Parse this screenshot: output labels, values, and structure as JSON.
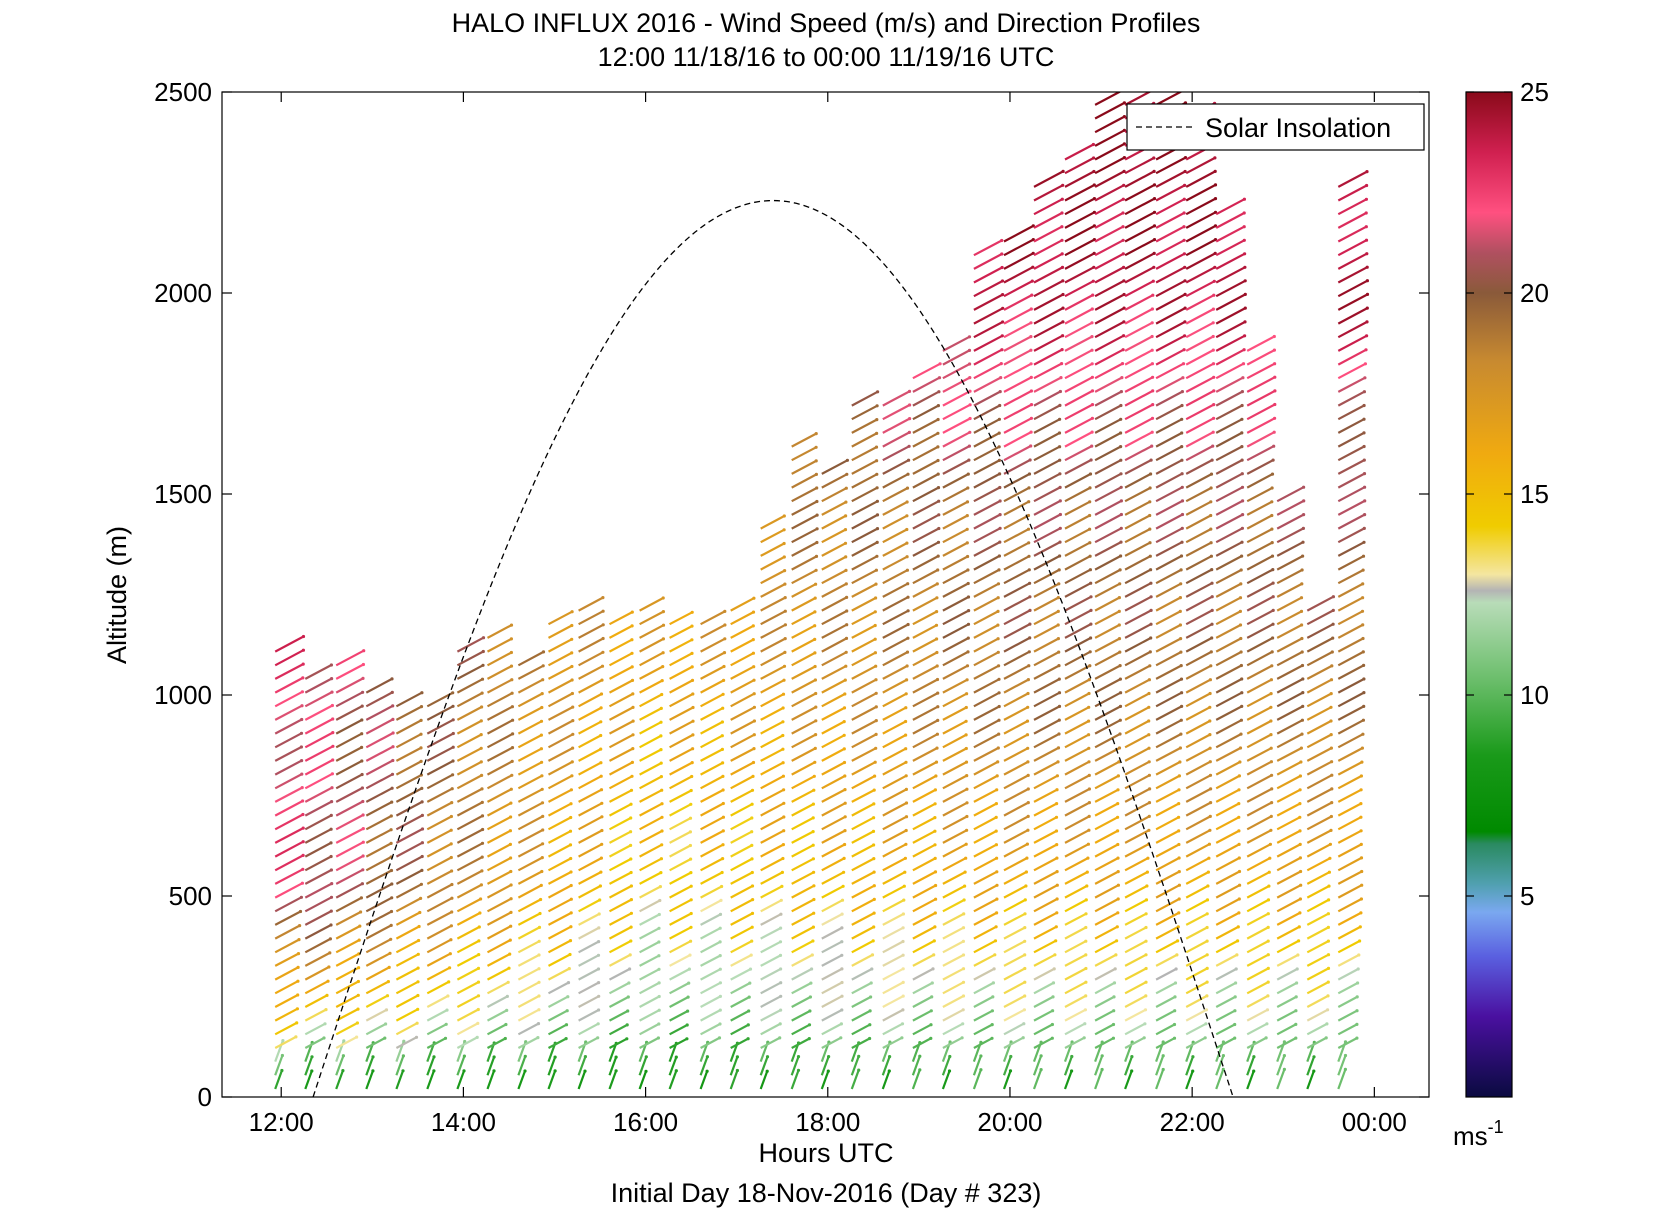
{
  "chart_data": {
    "type": "quiver",
    "title": "HALO INFLUX 2016 - Wind Speed (m/s) and Direction Profiles",
    "subtitle": "12:00 11/18/16 to 00:00 11/19/16  UTC",
    "xlabel": "Hours UTC",
    "ylabel": "Altitude (m)",
    "footer": "Initial Day 18-Nov-2016 (Day # 323)",
    "xlim_hours": [
      11.35,
      24.6
    ],
    "ylim": [
      0,
      2500
    ],
    "x_ticks": [
      {
        "value": 12,
        "label": "12:00"
      },
      {
        "value": 14,
        "label": "14:00"
      },
      {
        "value": 16,
        "label": "16:00"
      },
      {
        "value": 18,
        "label": "18:00"
      },
      {
        "value": 20,
        "label": "20:00"
      },
      {
        "value": 22,
        "label": "22:00"
      },
      {
        "value": 24,
        "label": "00:00"
      }
    ],
    "y_ticks": [
      0,
      500,
      1000,
      1500,
      2000,
      2500
    ],
    "legend": {
      "label": "Solar Insolation",
      "line_style": "dashed",
      "color": "#000000",
      "placement": "top-right"
    },
    "colorbar": {
      "min": 0,
      "max": 25,
      "ticks": [
        5,
        10,
        15,
        20,
        25
      ],
      "unit_label": "ms",
      "unit_exponent": "-1",
      "colors": [
        {
          "v": 0,
          "c": "#0a0a40"
        },
        {
          "v": 2,
          "c": "#4a10a0"
        },
        {
          "v": 3.5,
          "c": "#5a60e0"
        },
        {
          "v": 4.6,
          "c": "#7aa8f0"
        },
        {
          "v": 5.3,
          "c": "#50a0b0"
        },
        {
          "v": 6.3,
          "c": "#2a8a60"
        },
        {
          "v": 6.6,
          "c": "#008a00"
        },
        {
          "v": 8.5,
          "c": "#1a9a1a"
        },
        {
          "v": 10.5,
          "c": "#70c070"
        },
        {
          "v": 12.3,
          "c": "#b8dcb8"
        },
        {
          "v": 12.6,
          "c": "#b4b4b4"
        },
        {
          "v": 13,
          "c": "#f4e6a0"
        },
        {
          "v": 14.2,
          "c": "#f0cc00"
        },
        {
          "v": 16,
          "c": "#f0aa10"
        },
        {
          "v": 18.3,
          "c": "#c88a30"
        },
        {
          "v": 20,
          "c": "#8a5a3a"
        },
        {
          "v": 21,
          "c": "#b05060"
        },
        {
          "v": 22,
          "c": "#ff5080"
        },
        {
          "v": 23.5,
          "c": "#d02050"
        },
        {
          "v": 25,
          "c": "#8a0a1a"
        }
      ]
    },
    "solar_insolation_curve": {
      "peak_hour": 17.4,
      "peak_altitude": 2230,
      "start_hour": 12.35,
      "end_hour": 22.45
    },
    "profile_times_hours": [
      12.0,
      12.33,
      12.67,
      13.0,
      13.33,
      13.67,
      14.0,
      14.33,
      14.67,
      15.0,
      15.33,
      15.67,
      16.0,
      16.33,
      16.67,
      17.0,
      17.33,
      17.67,
      18.0,
      18.33,
      18.67,
      19.0,
      19.33,
      19.67,
      20.0,
      20.33,
      20.67,
      21.0,
      21.33,
      21.67,
      22.0,
      22.33,
      22.67,
      23.0,
      23.33,
      23.67
    ],
    "profile_top_altitudes": [
      1120,
      1040,
      1080,
      1020,
      990,
      980,
      1120,
      1170,
      1100,
      1190,
      1240,
      1180,
      1220,
      1200,
      1180,
      1220,
      1420,
      1620,
      1580,
      1740,
      1720,
      1800,
      1880,
      2120,
      2160,
      2280,
      2360,
      2480,
      2490,
      2500,
      2440,
      2200,
      1880,
      1500,
      1220,
      2280
    ],
    "profile_surface_speed": [
      9,
      9,
      9,
      9,
      9,
      9,
      9,
      9,
      9,
      9,
      9,
      9,
      9,
      9,
      9,
      9,
      9,
      9,
      9,
      9,
      9,
      9,
      9,
      9,
      9,
      9,
      9,
      9,
      9,
      9,
      9,
      9,
      9,
      9,
      9,
      9
    ],
    "speed_profile_keypoints_note_removed": true,
    "speed_profile_by_altitude": [
      {
        "altitude": 0,
        "speed_early": 8,
        "speed_mid": 8,
        "speed_late": 9
      },
      {
        "altitude": 200,
        "speed_early": 15,
        "speed_mid": 11,
        "speed_late": 12
      },
      {
        "altitude": 500,
        "speed_early": 22,
        "speed_mid": 14,
        "speed_late": 16
      },
      {
        "altitude": 1000,
        "speed_early": 22,
        "speed_mid": 16,
        "speed_late": 19
      },
      {
        "altitude": 1500,
        "speed_early": 24,
        "speed_mid": 18,
        "speed_late": 20
      },
      {
        "altitude": 2000,
        "speed_early": 24,
        "speed_mid": 21,
        "speed_late": 24
      },
      {
        "altitude": 2500,
        "speed_early": 24,
        "speed_mid": 22,
        "speed_late": 25
      }
    ]
  }
}
